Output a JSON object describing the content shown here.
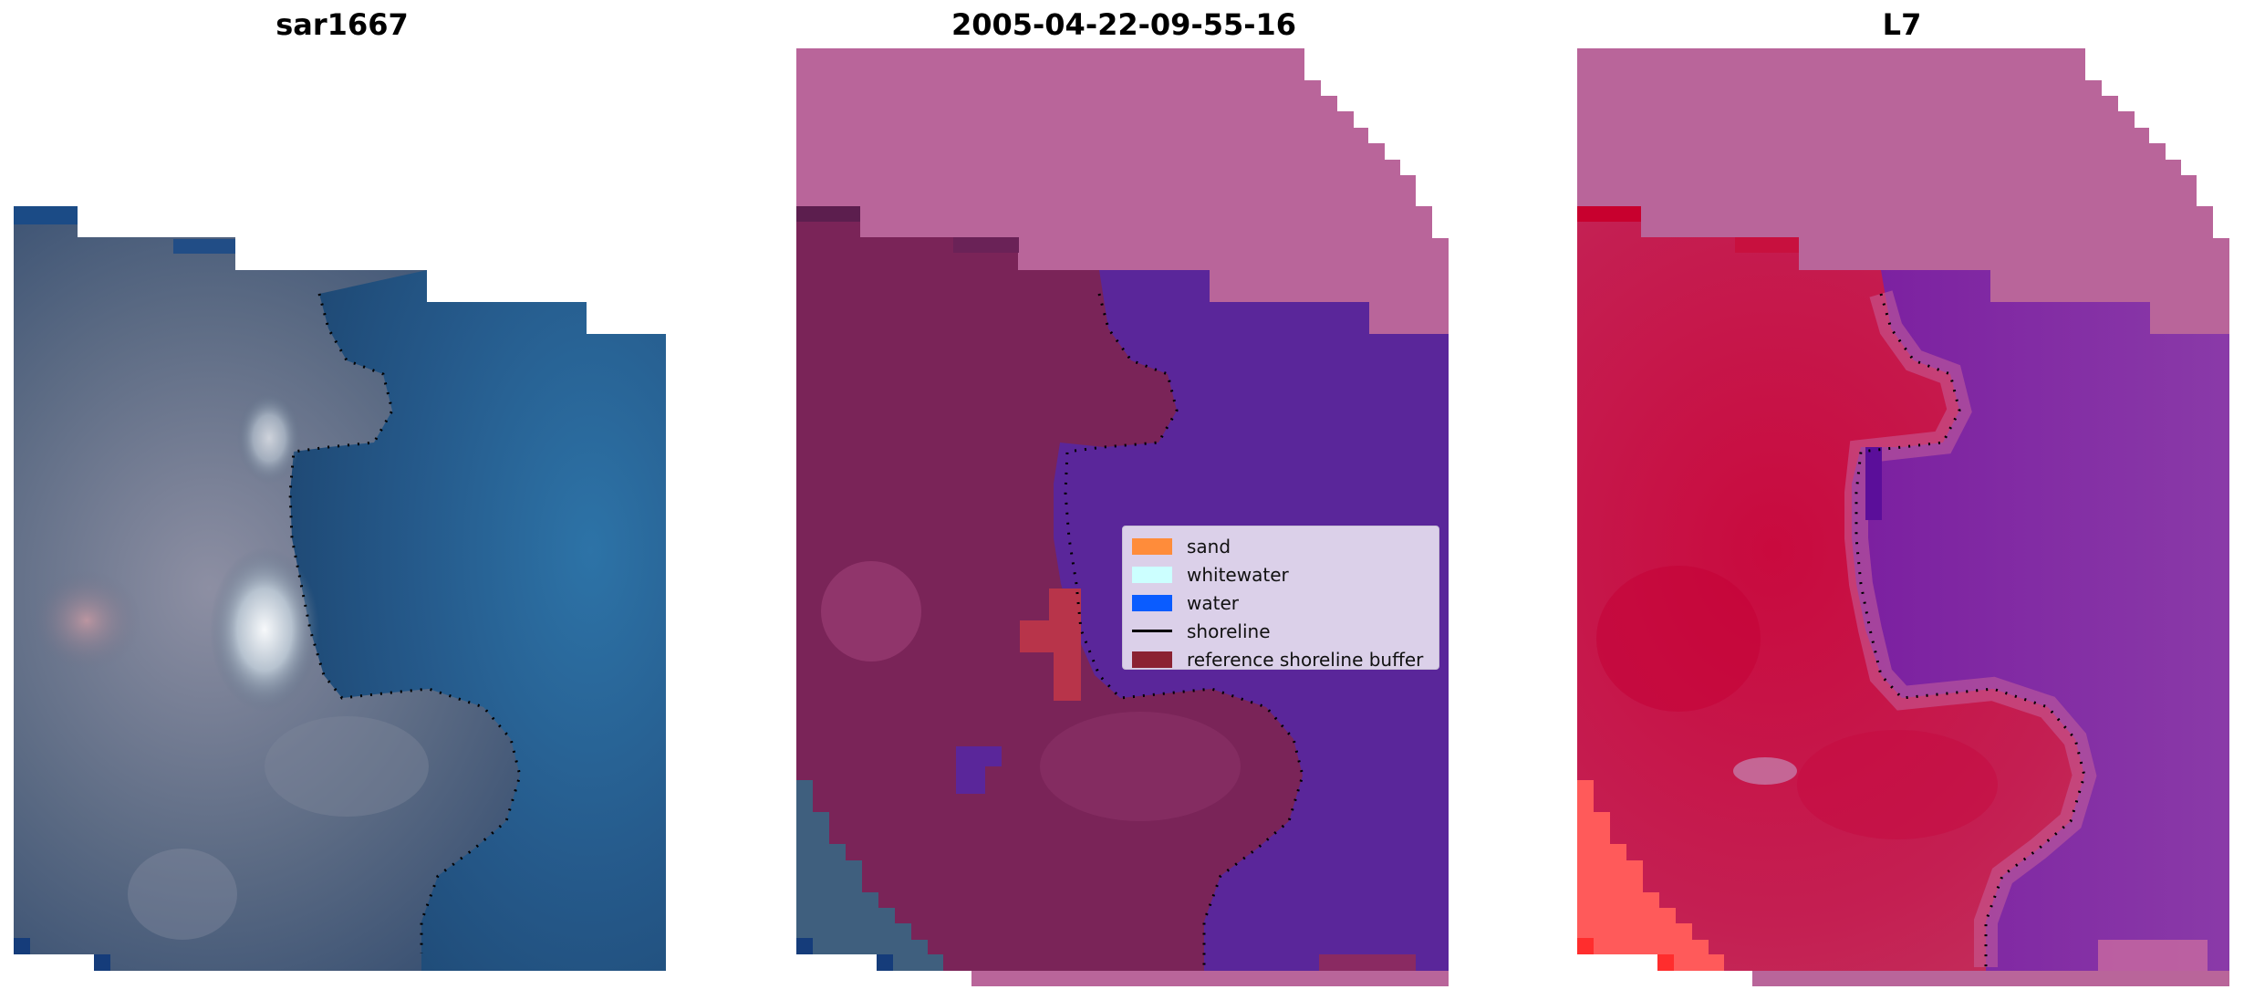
{
  "panels": [
    {
      "title": "sar1667"
    },
    {
      "title": "2005-04-22-09-55-16"
    },
    {
      "title": "L7"
    }
  ],
  "legend": {
    "items": [
      {
        "label": "sand",
        "color": "#ff8c3a"
      },
      {
        "label": "whitewater",
        "color": "#ccffff"
      },
      {
        "label": "water",
        "color": "#0a5cff"
      },
      {
        "label": "shoreline",
        "color": "#000000"
      },
      {
        "label": "reference shoreline buffer",
        "color": "#8b2232"
      }
    ]
  },
  "colors": {
    "nodata_mask": "#b9659a",
    "ndwi_land": "#c8194a",
    "ndwi_water": "#7a2ca8",
    "classified_water": "#5a2a9b",
    "classified_land": "#7a2458"
  }
}
